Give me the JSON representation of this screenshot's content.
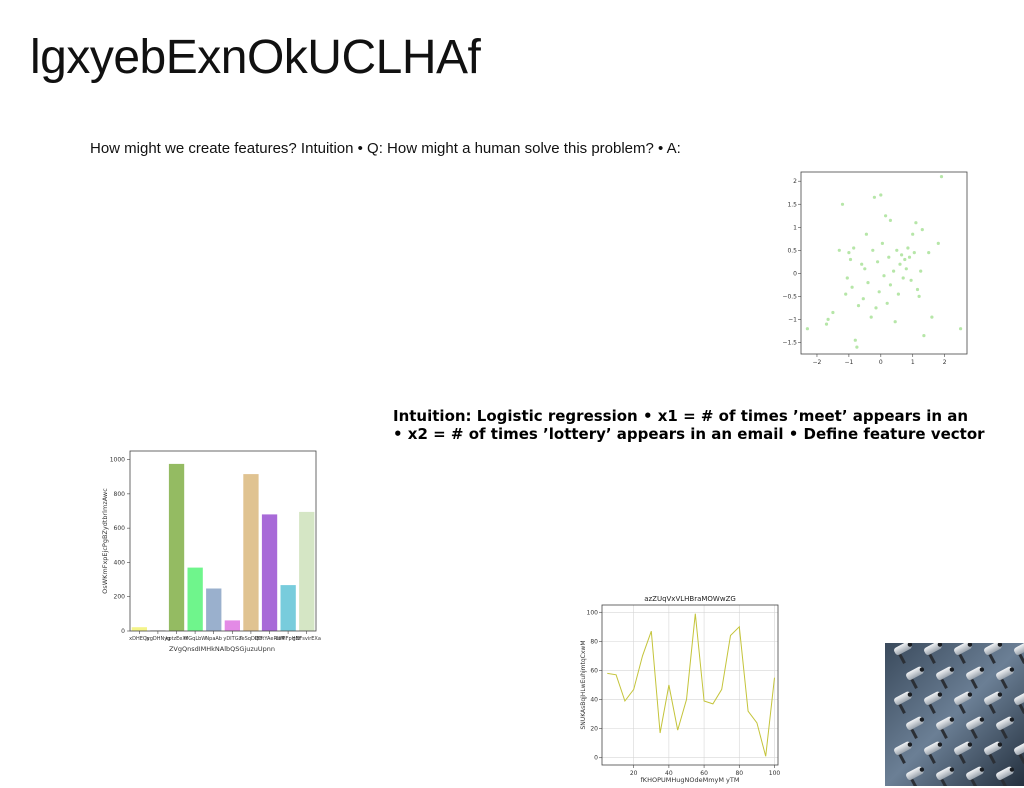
{
  "slide": {
    "title": "lgxyebExnOkUCLHAf",
    "intro_text": "How might we create features? Intuition • Q: How might a human solve this problem? • A:",
    "intuition_line1": "Intuition: Logistic regression • x1 = # of times ’meet’ appears in an",
    "intuition_line2": "• x2 = # of times ’lottery’ appears in an email • Define feature vector"
  },
  "colors": {
    "scatter_point": "#b6e6a8",
    "line_series": "#c4c43a",
    "bars": [
      "#f4f48a",
      "#dcdcdc",
      "#94bb62",
      "#6ff58c",
      "#9ab0cd",
      "#e38ae6",
      "#e0c391",
      "#a86ad8",
      "#78ccdc",
      "#d5e6c5"
    ]
  },
  "chart_data": [
    {
      "type": "scatter",
      "title": "",
      "xlabel": "",
      "ylabel": "",
      "xlim": [
        -2.5,
        2.7
      ],
      "ylim": [
        -1.75,
        2.2
      ],
      "x_ticks": [
        -2,
        -1,
        0,
        1,
        2
      ],
      "y_ticks": [
        -1.5,
        -1.0,
        -0.5,
        0.0,
        0.5,
        1.0,
        1.5,
        2.0
      ],
      "grid": false,
      "points": [
        {
          "x": -2.3,
          "y": -1.2
        },
        {
          "x": -1.7,
          "y": -1.1
        },
        {
          "x": -1.65,
          "y": -1.0
        },
        {
          "x": -1.5,
          "y": -0.85
        },
        {
          "x": -1.3,
          "y": 0.5
        },
        {
          "x": -1.2,
          "y": 1.5
        },
        {
          "x": -1.1,
          "y": -0.45
        },
        {
          "x": -1.05,
          "y": -0.1
        },
        {
          "x": -1.0,
          "y": 0.45
        },
        {
          "x": -0.95,
          "y": 0.3
        },
        {
          "x": -0.9,
          "y": -0.3
        },
        {
          "x": -0.85,
          "y": 0.55
        },
        {
          "x": -0.8,
          "y": -1.45
        },
        {
          "x": -0.75,
          "y": -1.6
        },
        {
          "x": -0.7,
          "y": -0.7
        },
        {
          "x": -0.6,
          "y": 0.2
        },
        {
          "x": -0.55,
          "y": -0.55
        },
        {
          "x": -0.5,
          "y": 0.1
        },
        {
          "x": -0.45,
          "y": 0.85
        },
        {
          "x": -0.4,
          "y": -0.2
        },
        {
          "x": -0.3,
          "y": -0.95
        },
        {
          "x": -0.25,
          "y": 0.5
        },
        {
          "x": -0.2,
          "y": 1.65
        },
        {
          "x": -0.15,
          "y": -0.75
        },
        {
          "x": -0.1,
          "y": 0.25
        },
        {
          "x": -0.05,
          "y": -0.4
        },
        {
          "x": 0.0,
          "y": 1.7
        },
        {
          "x": 0.05,
          "y": 0.65
        },
        {
          "x": 0.1,
          "y": -0.05
        },
        {
          "x": 0.15,
          "y": 1.25
        },
        {
          "x": 0.2,
          "y": -0.65
        },
        {
          "x": 0.25,
          "y": 0.35
        },
        {
          "x": 0.3,
          "y": 1.15
        },
        {
          "x": 0.3,
          "y": -0.25
        },
        {
          "x": 0.4,
          "y": 0.05
        },
        {
          "x": 0.45,
          "y": -1.05
        },
        {
          "x": 0.5,
          "y": 0.5
        },
        {
          "x": 0.55,
          "y": -0.45
        },
        {
          "x": 0.6,
          "y": 0.2
        },
        {
          "x": 0.65,
          "y": 0.4
        },
        {
          "x": 0.7,
          "y": -0.1
        },
        {
          "x": 0.75,
          "y": 0.3
        },
        {
          "x": 0.8,
          "y": 0.1
        },
        {
          "x": 0.85,
          "y": 0.55
        },
        {
          "x": 0.9,
          "y": 0.35
        },
        {
          "x": 0.95,
          "y": -0.15
        },
        {
          "x": 1.0,
          "y": 0.85
        },
        {
          "x": 1.05,
          "y": 0.45
        },
        {
          "x": 1.1,
          "y": 1.1
        },
        {
          "x": 1.15,
          "y": -0.35
        },
        {
          "x": 1.2,
          "y": -0.5
        },
        {
          "x": 1.25,
          "y": 0.05
        },
        {
          "x": 1.3,
          "y": 0.95
        },
        {
          "x": 1.35,
          "y": -1.35
        },
        {
          "x": 1.5,
          "y": 0.45
        },
        {
          "x": 1.6,
          "y": -0.95
        },
        {
          "x": 1.8,
          "y": 0.65
        },
        {
          "x": 1.9,
          "y": 2.1
        },
        {
          "x": 2.5,
          "y": -1.2
        }
      ]
    },
    {
      "type": "bar",
      "title": "",
      "xlabel": "ZVgQnsdIMHkNAlbQSGjuzuUpnn",
      "ylabel": "OsWKmFxpEjcPgBZydtbrlmzAwc",
      "ylim": [
        0,
        1050
      ],
      "y_ticks": [
        0,
        200,
        400,
        600,
        800,
        1000
      ],
      "grid": false,
      "categories": [
        "xDHEOs",
        "jygDHNyg",
        "kptzEeXf",
        "MGqLbW",
        "NpaAb",
        "yDITGz",
        "TeSqDIBY",
        "QOtYAeRdM",
        "6sMFpHEt",
        "gNFsvirEXa"
      ],
      "values": [
        22,
        5,
        975,
        370,
        248,
        62,
        915,
        680,
        268,
        695
      ]
    },
    {
      "type": "line",
      "title": "azZUqVxVLHBraMOWwZG",
      "xlabel": "fKHOPUMHugNOdeMmyM yTM",
      "ylabel": "SNUKAsBqjHLwEuhjmtqCxwM",
      "xlim": [
        2,
        102
      ],
      "ylim": [
        -5,
        105
      ],
      "x_ticks": [
        20,
        40,
        60,
        80,
        100
      ],
      "y_ticks": [
        0,
        20,
        40,
        60,
        80,
        100
      ],
      "grid": true,
      "x": [
        5,
        10,
        15,
        20,
        25,
        30,
        35,
        40,
        45,
        50,
        55,
        60,
        65,
        70,
        75,
        80,
        85,
        90,
        95,
        100
      ],
      "y": [
        58,
        57,
        39,
        47,
        70,
        87,
        17,
        50,
        19,
        40,
        99,
        39,
        37,
        47,
        84,
        90,
        32,
        24,
        1,
        55
      ]
    }
  ]
}
